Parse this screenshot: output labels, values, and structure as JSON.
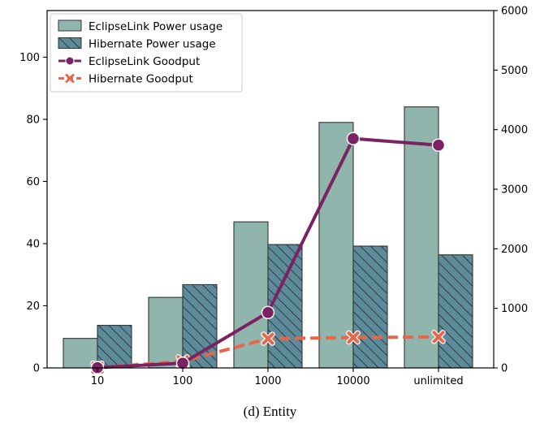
{
  "chart_data": {
    "type": "bar",
    "categories": [
      "10",
      "100",
      "1000",
      "10000",
      "unlimited"
    ],
    "series": [
      {
        "name": "EclipseLink Power usage",
        "type": "bar",
        "axis": "left",
        "values": [
          9.5,
          22.7,
          47,
          79,
          84
        ],
        "color": "#8fb5ad",
        "hatch": false
      },
      {
        "name": "Hibernate Power usage",
        "type": "bar",
        "axis": "left",
        "values": [
          13.7,
          26.8,
          39.7,
          39.2,
          36.4
        ],
        "color": "#5e8b99",
        "hatch": true
      },
      {
        "name": "EclipseLink Goodput",
        "type": "line",
        "axis": "right",
        "values": [
          5,
          80,
          930,
          3850,
          3740
        ],
        "color": "#7a2262",
        "marker": "circle",
        "dash": "solid"
      },
      {
        "name": "Hibernate Goodput",
        "type": "line",
        "axis": "right",
        "values": [
          5,
          110,
          490,
          510,
          520
        ],
        "color": "#e8674a",
        "marker": "x",
        "dash": "dashed"
      }
    ],
    "ylim_left": [
      0,
      115
    ],
    "yticks_left": [
      "0",
      "20",
      "40",
      "60",
      "80",
      "100"
    ],
    "ylim_right": [
      0,
      6000
    ],
    "yticks_right": [
      "0",
      "1000",
      "2000",
      "3000",
      "4000",
      "5000",
      "6000"
    ],
    "xlabel": "",
    "ylabel": "",
    "grid": false,
    "legend": "top-left",
    "caption": "(d) Entity"
  }
}
